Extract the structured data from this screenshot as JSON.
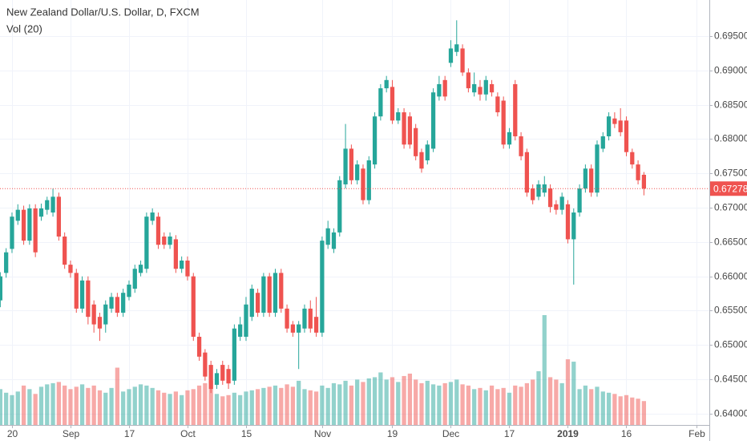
{
  "chart_data": {
    "type": "candlestick",
    "title": "New Zealand Dollar/U.S. Dollar, D, FXCM",
    "subtitle": "Vol (20)",
    "up_color": "#26a69a",
    "down_color": "#ef5350",
    "grid": true,
    "candles": [
      [
        0.6565,
        0.6606,
        0.6555,
        0.66
      ],
      [
        0.6605,
        0.6641,
        0.6598,
        0.6635
      ],
      [
        0.664,
        0.6693,
        0.6634,
        0.6687
      ],
      [
        0.6681,
        0.6705,
        0.6675,
        0.6697
      ],
      [
        0.6697,
        0.6703,
        0.6646,
        0.6652
      ],
      [
        0.6652,
        0.6705,
        0.6646,
        0.6699
      ],
      [
        0.6699,
        0.6705,
        0.6628,
        0.6635
      ],
      [
        0.6687,
        0.6706,
        0.6681,
        0.6699
      ],
      [
        0.6697,
        0.6716,
        0.669,
        0.6711
      ],
      [
        0.6693,
        0.6728,
        0.6687,
        0.6716
      ],
      [
        0.6716,
        0.6722,
        0.6652,
        0.6658
      ],
      [
        0.6658,
        0.6664,
        0.6611,
        0.6617
      ],
      [
        0.6617,
        0.6623,
        0.6598,
        0.6605
      ],
      [
        0.6605,
        0.6611,
        0.6547,
        0.6553
      ],
      [
        0.6553,
        0.66,
        0.6547,
        0.6594
      ],
      [
        0.6594,
        0.66,
        0.653,
        0.6541
      ],
      [
        0.6559,
        0.6565,
        0.6518,
        0.653
      ],
      [
        0.6541,
        0.6547,
        0.6506,
        0.6524
      ],
      [
        0.653,
        0.6565,
        0.6518,
        0.6559
      ],
      [
        0.6553,
        0.6576,
        0.6547,
        0.657
      ],
      [
        0.657,
        0.6576,
        0.6541,
        0.6547
      ],
      [
        0.6547,
        0.6582,
        0.6541,
        0.6576
      ],
      [
        0.657,
        0.6594,
        0.6565,
        0.6588
      ],
      [
        0.6582,
        0.6617,
        0.6576,
        0.6611
      ],
      [
        0.6605,
        0.6623,
        0.66,
        0.6617
      ],
      [
        0.6611,
        0.6693,
        0.6605,
        0.6687
      ],
      [
        0.6681,
        0.6699,
        0.6675,
        0.6693
      ],
      [
        0.6687,
        0.6693,
        0.664,
        0.6646
      ],
      [
        0.6658,
        0.6664,
        0.664,
        0.6646
      ],
      [
        0.6646,
        0.6664,
        0.664,
        0.6658
      ],
      [
        0.6654,
        0.666,
        0.6605,
        0.6611
      ],
      [
        0.6611,
        0.6629,
        0.6605,
        0.6623
      ],
      [
        0.6623,
        0.6629,
        0.6594,
        0.66
      ],
      [
        0.66,
        0.6605,
        0.6506,
        0.6512
      ],
      [
        0.6512,
        0.6518,
        0.6477,
        0.6483
      ],
      [
        0.6489,
        0.6494,
        0.6448,
        0.6454
      ],
      [
        0.6471,
        0.6477,
        0.643,
        0.6436
      ],
      [
        0.6442,
        0.6465,
        0.6436,
        0.6459
      ],
      [
        0.6471,
        0.6477,
        0.6442,
        0.6448
      ],
      [
        0.6465,
        0.6471,
        0.6436,
        0.6444
      ],
      [
        0.6448,
        0.653,
        0.6442,
        0.6524
      ],
      [
        0.6512,
        0.6541,
        0.6506,
        0.653
      ],
      [
        0.6512,
        0.657,
        0.6506,
        0.6559
      ],
      [
        0.6541,
        0.6588,
        0.6535,
        0.6582
      ],
      [
        0.6576,
        0.6582,
        0.6541,
        0.6547
      ],
      [
        0.6547,
        0.6605,
        0.6541,
        0.66
      ],
      [
        0.66,
        0.6605,
        0.6541,
        0.6547
      ],
      [
        0.6547,
        0.6611,
        0.6541,
        0.6605
      ],
      [
        0.6605,
        0.6611,
        0.6547,
        0.6553
      ],
      [
        0.6553,
        0.6559,
        0.6518,
        0.6524
      ],
      [
        0.653,
        0.6535,
        0.6512,
        0.6518
      ],
      [
        0.6518,
        0.6535,
        0.6465,
        0.653
      ],
      [
        0.6524,
        0.6559,
        0.6518,
        0.6553
      ],
      [
        0.6553,
        0.6565,
        0.6518,
        0.6524
      ],
      [
        0.6541,
        0.657,
        0.6512,
        0.6518
      ],
      [
        0.6518,
        0.6658,
        0.6512,
        0.6652
      ],
      [
        0.6646,
        0.6681,
        0.664,
        0.667
      ],
      [
        0.664,
        0.667,
        0.6634,
        0.6664
      ],
      [
        0.6664,
        0.6746,
        0.6658,
        0.674
      ],
      [
        0.6734,
        0.6822,
        0.6728,
        0.6786
      ],
      [
        0.6786,
        0.6792,
        0.6734,
        0.674
      ],
      [
        0.674,
        0.6769,
        0.6734,
        0.6763
      ],
      [
        0.6757,
        0.6763,
        0.6705,
        0.6711
      ],
      [
        0.6711,
        0.6775,
        0.6705,
        0.6769
      ],
      [
        0.6763,
        0.6839,
        0.6757,
        0.6833
      ],
      [
        0.6833,
        0.688,
        0.6827,
        0.6874
      ],
      [
        0.6874,
        0.6892,
        0.6868,
        0.6886
      ],
      [
        0.6876,
        0.6886,
        0.6822,
        0.6827
      ],
      [
        0.6827,
        0.6845,
        0.6822,
        0.6839
      ],
      [
        0.6839,
        0.6845,
        0.6786,
        0.6792
      ],
      [
        0.6833,
        0.6839,
        0.6786,
        0.6792
      ],
      [
        0.6816,
        0.6822,
        0.6769,
        0.6775
      ],
      [
        0.6781,
        0.6786,
        0.6751,
        0.6757
      ],
      [
        0.6769,
        0.6798,
        0.6763,
        0.6792
      ],
      [
        0.6786,
        0.6874,
        0.6781,
        0.6868
      ],
      [
        0.6862,
        0.6892,
        0.6856,
        0.688
      ],
      [
        0.6886,
        0.6892,
        0.6856,
        0.6862
      ],
      [
        0.6911,
        0.6944,
        0.6905,
        0.6932
      ],
      [
        0.6927,
        0.6973,
        0.6921,
        0.6938
      ],
      [
        0.6932,
        0.6938,
        0.6892,
        0.6897
      ],
      [
        0.6897,
        0.6903,
        0.6868,
        0.6874
      ],
      [
        0.6868,
        0.6897,
        0.6862,
        0.688
      ],
      [
        0.6876,
        0.6886,
        0.6856,
        0.6865
      ],
      [
        0.6865,
        0.6892,
        0.6856,
        0.6886
      ],
      [
        0.688,
        0.6886,
        0.6862,
        0.6868
      ],
      [
        0.6862,
        0.6868,
        0.6833,
        0.6839
      ],
      [
        0.6856,
        0.6862,
        0.6786,
        0.6792
      ],
      [
        0.6792,
        0.6816,
        0.6786,
        0.681
      ],
      [
        0.688,
        0.6886,
        0.6798,
        0.6804
      ],
      [
        0.6804,
        0.681,
        0.6769,
        0.6775
      ],
      [
        0.6781,
        0.6786,
        0.6716,
        0.6722
      ],
      [
        0.6728,
        0.6734,
        0.6705,
        0.6711
      ],
      [
        0.6716,
        0.674,
        0.6711,
        0.6734
      ],
      [
        0.6722,
        0.6746,
        0.6716,
        0.6734
      ],
      [
        0.6728,
        0.6734,
        0.6693,
        0.6701
      ],
      [
        0.6705,
        0.6711,
        0.669,
        0.6697
      ],
      [
        0.6697,
        0.6722,
        0.669,
        0.6716
      ],
      [
        0.6705,
        0.6711,
        0.6648,
        0.6654
      ],
      [
        0.6654,
        0.6699,
        0.6588,
        0.6693
      ],
      [
        0.6693,
        0.6734,
        0.6687,
        0.6728
      ],
      [
        0.6728,
        0.6763,
        0.6722,
        0.6757
      ],
      [
        0.6757,
        0.6763,
        0.6716,
        0.6722
      ],
      [
        0.6722,
        0.6798,
        0.6716,
        0.6792
      ],
      [
        0.6786,
        0.681,
        0.6781,
        0.6804
      ],
      [
        0.6804,
        0.6839,
        0.6798,
        0.6833
      ],
      [
        0.683,
        0.6839,
        0.6816,
        0.6822
      ],
      [
        0.6827,
        0.6845,
        0.6804,
        0.681
      ],
      [
        0.6827,
        0.6833,
        0.6775,
        0.6781
      ],
      [
        0.6781,
        0.6786,
        0.6757,
        0.6763
      ],
      [
        0.6763,
        0.6769,
        0.6734,
        0.674
      ],
      [
        0.6748,
        0.6752,
        0.6718,
        0.67278
      ]
    ],
    "volume": [
      30,
      27,
      25,
      28,
      33,
      30,
      26,
      32,
      34,
      35,
      36,
      33,
      30,
      32,
      34,
      31,
      33,
      29,
      27,
      31,
      48,
      28,
      30,
      32,
      34,
      33,
      31,
      29,
      27,
      26,
      28,
      25,
      29,
      30,
      33,
      35,
      37,
      26,
      24,
      25,
      27,
      25,
      28,
      29,
      30,
      31,
      32,
      33,
      31,
      34,
      32,
      37,
      30,
      29,
      28,
      33,
      31,
      35,
      34,
      37,
      33,
      38,
      36,
      39,
      40,
      44,
      38,
      40,
      36,
      41,
      43,
      38,
      35,
      37,
      34,
      33,
      35,
      36,
      38,
      34,
      33,
      30,
      31,
      29,
      33,
      30,
      31,
      27,
      33,
      32,
      35,
      38,
      45,
      92,
      40,
      38,
      35,
      55,
      53,
      30,
      33,
      30,
      32,
      28,
      27,
      26,
      24,
      25,
      23,
      22,
      20
    ],
    "ylim": [
      0.63835,
      0.70026
    ],
    "yticks": [
      {
        "value": 0.64,
        "label": "0.64000"
      },
      {
        "value": 0.645,
        "label": "0.64500"
      },
      {
        "value": 0.65,
        "label": "0.65000"
      },
      {
        "value": 0.655,
        "label": "0.65500"
      },
      {
        "value": 0.66,
        "label": "0.66000"
      },
      {
        "value": 0.665,
        "label": "0.66500"
      },
      {
        "value": 0.67,
        "label": "0.67000"
      },
      {
        "value": 0.675,
        "label": "0.67500"
      },
      {
        "value": 0.68,
        "label": "0.68000"
      },
      {
        "value": 0.685,
        "label": "0.68500"
      },
      {
        "value": 0.69,
        "label": "0.69000"
      },
      {
        "value": 0.695,
        "label": "0.69500"
      }
    ],
    "xlim": [
      -0.05,
      121.18
    ],
    "xticks": [
      {
        "value": 2,
        "label": "20"
      },
      {
        "value": 12,
        "label": "Sep"
      },
      {
        "value": 22,
        "label": "17"
      },
      {
        "value": 32,
        "label": "Oct"
      },
      {
        "value": 42,
        "label": "15"
      },
      {
        "value": 55,
        "label": "Nov"
      },
      {
        "value": 67,
        "label": "19"
      },
      {
        "value": 77,
        "label": "Dec"
      },
      {
        "value": 87,
        "label": "17"
      },
      {
        "value": 97,
        "label": "2019"
      },
      {
        "value": 107,
        "label": "16"
      },
      {
        "value": 119,
        "label": "Feb"
      }
    ],
    "last_price": 0.67278,
    "last_price_color": "#ef5350"
  }
}
